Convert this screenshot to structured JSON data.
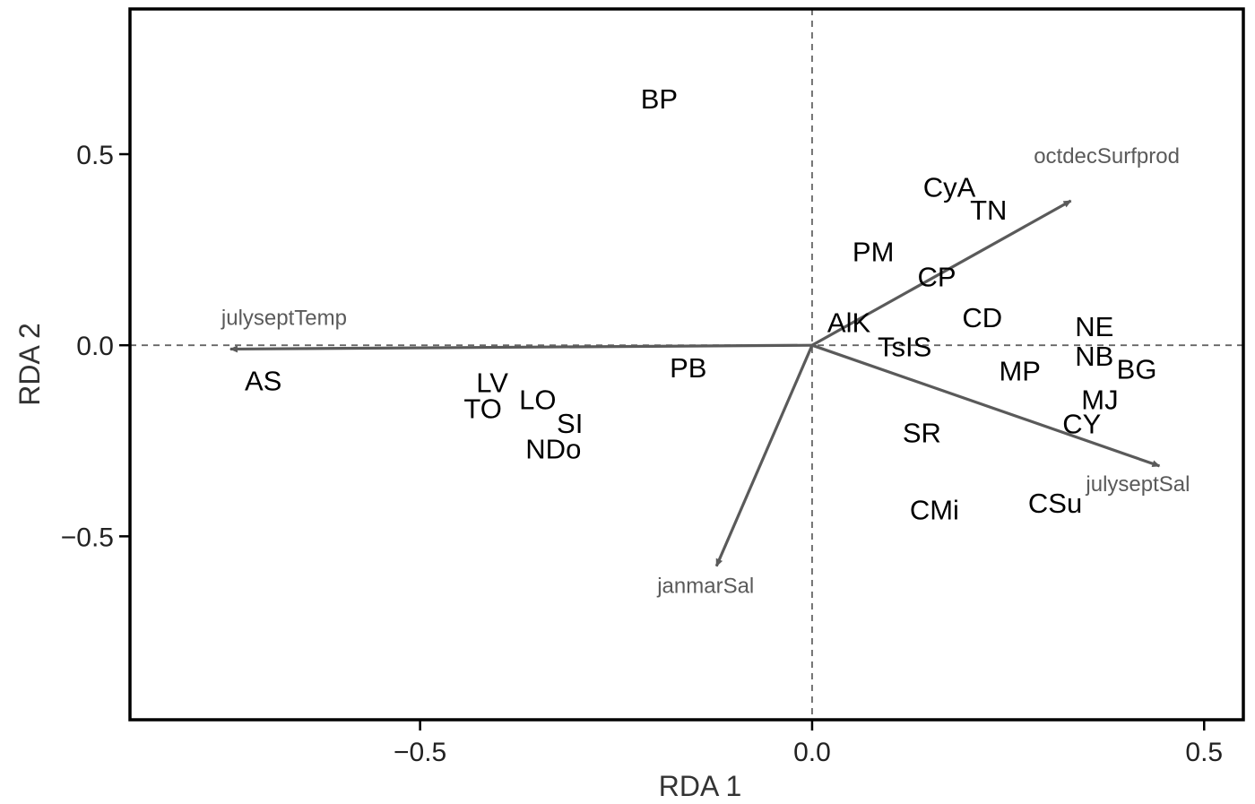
{
  "chart_data": {
    "type": "scatter",
    "title": "",
    "xlabel": "RDA 1",
    "ylabel": "RDA 2",
    "xlim": [
      -0.87,
      0.55
    ],
    "ylim": [
      -0.98,
      0.88
    ],
    "x_ticks": [
      {
        "value": -0.5,
        "label": "−0.5"
      },
      {
        "value": 0.0,
        "label": "0.0"
      },
      {
        "value": 0.5,
        "label": "0.5"
      }
    ],
    "y_ticks": [
      {
        "value": 0.5,
        "label": "0.5"
      },
      {
        "value": 0.0,
        "label": "0.0"
      },
      {
        "value": -0.5,
        "label": "−0.5"
      }
    ],
    "reference_lines": {
      "x": 0,
      "y": 0,
      "style": "dashed"
    },
    "grid": false,
    "sites": [
      {
        "label": "BP",
        "x": -0.195,
        "y": 0.645
      },
      {
        "label": "CyA",
        "x": 0.175,
        "y": 0.415
      },
      {
        "label": "TN",
        "x": 0.225,
        "y": 0.355
      },
      {
        "label": "PM",
        "x": 0.078,
        "y": 0.245
      },
      {
        "label": "CP",
        "x": 0.159,
        "y": 0.18
      },
      {
        "label": "CD",
        "x": 0.217,
        "y": 0.073
      },
      {
        "label": "NE",
        "x": 0.36,
        "y": 0.05
      },
      {
        "label": "AlK",
        "x": 0.047,
        "y": 0.06
      },
      {
        "label": "TsIS",
        "x": 0.118,
        "y": -0.003
      },
      {
        "label": "NB",
        "x": 0.36,
        "y": -0.028
      },
      {
        "label": "BG",
        "x": 0.414,
        "y": -0.062
      },
      {
        "label": "MP",
        "x": 0.265,
        "y": -0.066
      },
      {
        "label": "MJ",
        "x": 0.367,
        "y": -0.142
      },
      {
        "label": "CY",
        "x": 0.344,
        "y": -0.205
      },
      {
        "label": "SR",
        "x": 0.14,
        "y": -0.228
      },
      {
        "label": "CSu",
        "x": 0.31,
        "y": -0.412
      },
      {
        "label": "CMi",
        "x": 0.156,
        "y": -0.43
      },
      {
        "label": "PB",
        "x": -0.158,
        "y": -0.058
      },
      {
        "label": "AS",
        "x": -0.7,
        "y": -0.092
      },
      {
        "label": "LV",
        "x": -0.408,
        "y": -0.097
      },
      {
        "label": "TO",
        "x": -0.42,
        "y": -0.165
      },
      {
        "label": "LO",
        "x": -0.35,
        "y": -0.141
      },
      {
        "label": "SI",
        "x": -0.309,
        "y": -0.204
      },
      {
        "label": "NDo",
        "x": -0.33,
        "y": -0.27
      }
    ],
    "env_vectors": [
      {
        "label": "julyseptTemp",
        "x": -0.742,
        "y": -0.01
      },
      {
        "label": "octdecSurfprod",
        "x": 0.33,
        "y": 0.378
      },
      {
        "label": "julyseptSal",
        "x": 0.443,
        "y": -0.316
      },
      {
        "label": "janmarSal",
        "x": -0.122,
        "y": -0.578
      }
    ],
    "colors": {
      "site_text": "#000000",
      "vector": "#5a5a5a",
      "frame": "#000000",
      "reference": "#666666"
    }
  }
}
